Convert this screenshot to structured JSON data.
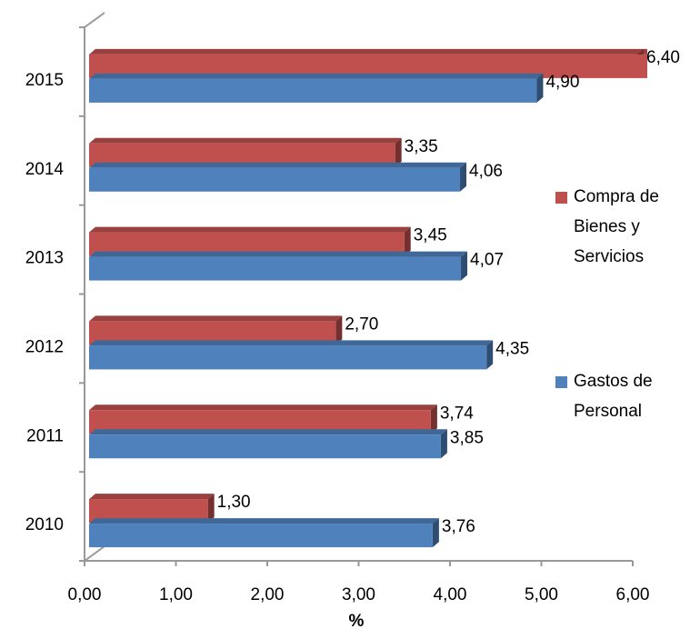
{
  "chart_data": {
    "type": "bar3d_horizontal",
    "categories": [
      "2010",
      "2011",
      "2012",
      "2013",
      "2014",
      "2015"
    ],
    "series": [
      {
        "name": "Compra de Bienes y Servicios",
        "color": "#c0504d",
        "values": [
          1.3,
          3.74,
          2.7,
          3.45,
          3.35,
          6.4
        ],
        "value_labels": [
          "1,30",
          "3,74",
          "2,70",
          "3,45",
          "3,35",
          "6,40"
        ]
      },
      {
        "name": "Gastos de Personal",
        "color": "#4f81bd",
        "values": [
          3.76,
          3.85,
          4.35,
          4.07,
          4.06,
          4.9
        ],
        "value_labels": [
          "3,76",
          "3,85",
          "4,35",
          "4,07",
          "4,06",
          "4,90"
        ]
      }
    ],
    "xlabel": "%",
    "xlim": [
      0,
      6
    ],
    "xticks": [
      {
        "value": 0,
        "label": "0,00"
      },
      {
        "value": 1,
        "label": "1,00"
      },
      {
        "value": 2,
        "label": "2,00"
      },
      {
        "value": 3,
        "label": "3,00"
      },
      {
        "value": 4,
        "label": "4,00"
      },
      {
        "value": 5,
        "label": "5,00"
      },
      {
        "value": 6,
        "label": "6,00"
      }
    ],
    "legend": "right"
  }
}
